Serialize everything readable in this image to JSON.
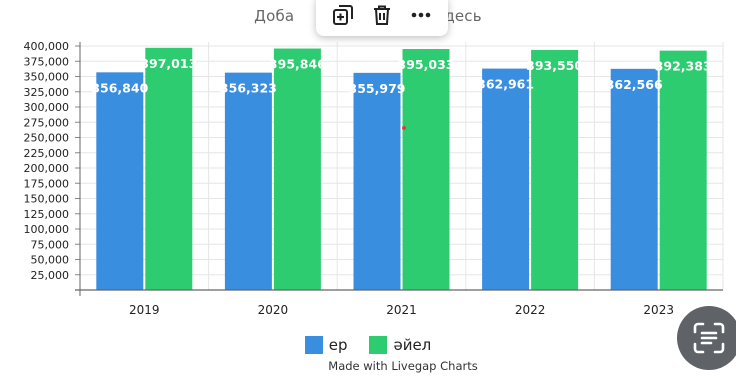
{
  "header": {
    "subtitle_left": "Доба",
    "subtitle_right": "десь"
  },
  "toolbar": {
    "items": [
      {
        "icon": "duplicate-icon"
      },
      {
        "icon": "trash-icon"
      },
      {
        "icon": "more-icon"
      }
    ]
  },
  "chart_data": {
    "type": "bar",
    "categories": [
      "2019",
      "2020",
      "2021",
      "2022",
      "2023"
    ],
    "series": [
      {
        "name": "ер",
        "color": "#3a8ee0",
        "values": [
          356840,
          356323,
          355979,
          362961,
          362566
        ]
      },
      {
        "name": "әйел",
        "color": "#2ecc71",
        "values": [
          397013,
          395846,
          395033,
          393550,
          392383
        ]
      }
    ],
    "data_labels": [
      [
        "356,840",
        "356,323",
        "355,979",
        "362,961",
        "362,566"
      ],
      [
        "397,013",
        "395,846",
        "395,033",
        "393,550",
        "392,383"
      ]
    ],
    "ylim": [
      0,
      400000
    ],
    "yticks": [
      25000,
      50000,
      75000,
      100000,
      125000,
      150000,
      175000,
      200000,
      225000,
      250000,
      275000,
      300000,
      325000,
      350000,
      375000,
      400000
    ],
    "ytick_labels": [
      "25,000",
      "50,000",
      "75,000",
      "100,000",
      "125,000",
      "150,000",
      "175,000",
      "200,000",
      "225,000",
      "250,000",
      "275,000",
      "300,000",
      "325,000",
      "350,000",
      "375,000",
      "400,000"
    ],
    "grid": true,
    "legend_position": "bottom-center"
  },
  "footer": {
    "credit": "Made with Livegap Charts"
  },
  "lens_button": {
    "icon": "scan-text-icon"
  }
}
